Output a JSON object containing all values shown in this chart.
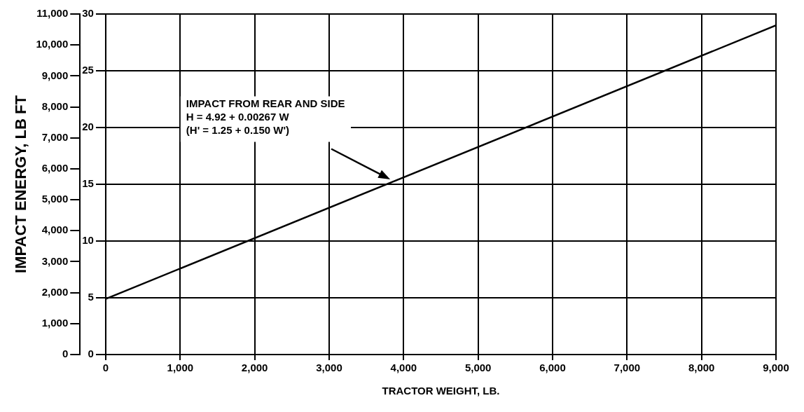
{
  "chart_data": {
    "type": "line",
    "xlabel": "TRACTOR WEIGHT, LB.",
    "ylabel": "IMPACT ENERGY, LB FT",
    "x": [
      0,
      9000
    ],
    "series": [
      {
        "values": [
          4.9,
          29.0
        ],
        "color": "#000000",
        "axis": "y2"
      }
    ],
    "xlim": [
      0,
      9000
    ],
    "xticks": [
      0,
      {
        "value": 1000,
        "label": "1,000"
      },
      {
        "value": 2000,
        "label": "2,000"
      },
      {
        "value": 3000,
        "label": "3,000"
      },
      {
        "value": 4000,
        "label": "4,000"
      },
      {
        "value": 5000,
        "label": "5,000"
      },
      {
        "value": 6000,
        "label": "6,000"
      },
      {
        "value": 7000,
        "label": "7,000"
      },
      {
        "value": 8000,
        "label": "8,000"
      },
      {
        "value": 9000,
        "label": "9,000"
      }
    ],
    "ylim": [
      0,
      11000
    ],
    "yticks": [
      0,
      {
        "value": 1000,
        "label": "1,000"
      },
      {
        "value": 2000,
        "label": "2,000"
      },
      {
        "value": 3000,
        "label": "3,000"
      },
      {
        "value": 4000,
        "label": "4,000"
      },
      {
        "value": 5000,
        "label": "5,000"
      },
      {
        "value": 6000,
        "label": "6,000"
      },
      {
        "value": 7000,
        "label": "7,000"
      },
      {
        "value": 8000,
        "label": "8,000"
      },
      {
        "value": 9000,
        "label": "9,000"
      },
      {
        "value": 10000,
        "label": "10,000"
      },
      {
        "value": 11000,
        "label": "11,000"
      }
    ],
    "y2lim": [
      0,
      30
    ],
    "y2ticks": [
      0,
      5,
      10,
      15,
      20,
      25,
      30
    ],
    "grid": "y2",
    "legend": false,
    "marker": "none",
    "line_style": "solid",
    "annotations": [
      "IMPACT FROM REAR AND SIDE\nH = 4.92 + 0.00267 W\n(H' = 1.25 + 0.150 W')"
    ]
  }
}
